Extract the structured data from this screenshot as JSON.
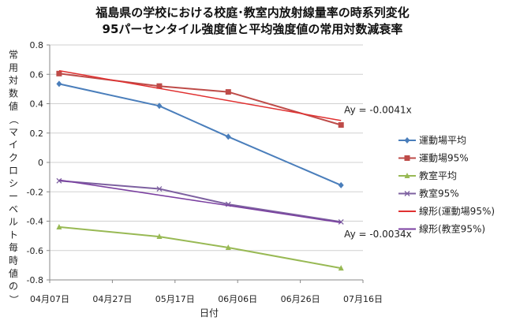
{
  "chart_data": {
    "type": "line",
    "title": "福島県の学校における校庭･教室内放射線量率の時系列変化",
    "subtitle": "95パーセンタイル強度値と平均強度値の常用対数減衰率",
    "xlabel": "日付",
    "ylabel": "常用対数値（マイクロシーベルト毎時値の）",
    "ylim": [
      -0.8,
      0.8
    ],
    "yticks": [
      "0.8",
      "0.6",
      "0.4",
      "0.2",
      "0",
      "-0.2",
      "-0.4",
      "-0.6",
      "-0.8"
    ],
    "xlim": [
      "2011-04-07",
      "2011-07-16"
    ],
    "xticks": [
      "04月07日",
      "04月27日",
      "05月17日",
      "06月06日",
      "06月26日",
      "07月16日"
    ],
    "grid": true,
    "legend_position": "right",
    "series": [
      {
        "name": "運動場平均",
        "color": "#4a7ebb",
        "marker": "diamond",
        "x": [
          "2011-04-10",
          "2011-05-12",
          "2011-06-03",
          "2011-07-09"
        ],
        "values": [
          0.535,
          0.385,
          0.175,
          -0.155
        ]
      },
      {
        "name": "運動場95%",
        "color": "#be4b48",
        "marker": "square",
        "x": [
          "2011-04-10",
          "2011-05-12",
          "2011-06-03",
          "2011-07-09"
        ],
        "values": [
          0.605,
          0.52,
          0.48,
          0.255
        ]
      },
      {
        "name": "教室平均",
        "color": "#98b954",
        "marker": "triangle",
        "x": [
          "2011-04-10",
          "2011-05-12",
          "2011-06-03",
          "2011-07-09"
        ],
        "values": [
          -0.44,
          -0.505,
          -0.58,
          -0.72
        ]
      },
      {
        "name": "教室95%",
        "color": "#7d60a0",
        "marker": "x",
        "x": [
          "2011-04-10",
          "2011-05-12",
          "2011-06-03",
          "2011-07-09"
        ],
        "values": [
          -0.125,
          -0.18,
          -0.285,
          -0.405
        ]
      },
      {
        "name": "線形(運動場95%)",
        "color": "#e03030",
        "marker": "none",
        "trendline": true,
        "x": [
          "2011-04-10",
          "2011-07-09"
        ],
        "values": [
          0.625,
          0.285
        ]
      },
      {
        "name": "線形(教室95%)",
        "color": "#7a3fa0",
        "marker": "none",
        "trendline": true,
        "x": [
          "2011-04-10",
          "2011-07-09"
        ],
        "values": [
          -0.12,
          -0.41
        ]
      }
    ],
    "annotations": [
      {
        "text": "Ay = -0.0041x",
        "x": "2011-07-10",
        "y": 0.335
      },
      {
        "text": "Ay = -0.0034x",
        "x": "2011-07-10",
        "y": -0.51
      }
    ]
  }
}
